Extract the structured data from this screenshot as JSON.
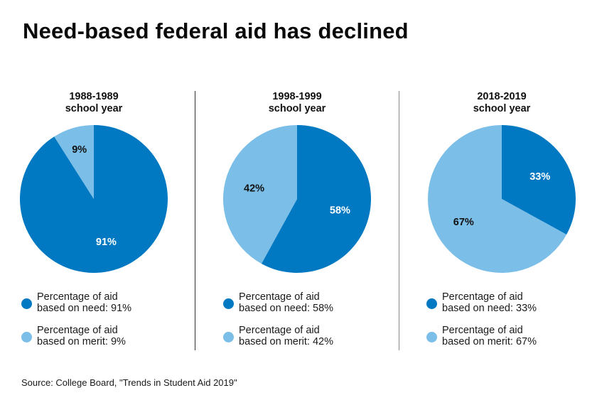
{
  "title": "Need-based federal aid has declined",
  "source": "Source: College Board, \"Trends in Student Aid 2019\"",
  "colors": {
    "need": "#0079C2",
    "merit": "#7BBEE8",
    "divider_dark": "#333333",
    "divider_light": "#8a8a8a",
    "label_on_dark": "#ffffff",
    "label_on_light": "#111111"
  },
  "chart_data": [
    {
      "type": "pie",
      "title_line1": "1988-1989",
      "title_line2": "school year",
      "slices": [
        {
          "name": "Percentage of aid based on need",
          "value": 91,
          "label": "91%",
          "key": "need"
        },
        {
          "name": "Percentage of aid based on merit",
          "value": 9,
          "label": "9%",
          "key": "merit"
        }
      ],
      "legend": [
        {
          "line1": "Percentage of aid",
          "line2": "based on need: 91%",
          "key": "need"
        },
        {
          "line1": "Percentage of aid",
          "line2": "based on merit: 9%",
          "key": "merit"
        }
      ]
    },
    {
      "type": "pie",
      "title_line1": "1998-1999",
      "title_line2": "school year",
      "slices": [
        {
          "name": "Percentage of aid based on need",
          "value": 58,
          "label": "58%",
          "key": "need"
        },
        {
          "name": "Percentage of aid based on merit",
          "value": 42,
          "label": "42%",
          "key": "merit"
        }
      ],
      "legend": [
        {
          "line1": "Percentage of aid",
          "line2": "based on need: 58%",
          "key": "need"
        },
        {
          "line1": "Percentage of aid",
          "line2": "based on merit: 42%",
          "key": "merit"
        }
      ]
    },
    {
      "type": "pie",
      "title_line1": "2018-2019",
      "title_line2": "school year",
      "slices": [
        {
          "name": "Percentage of aid based on need",
          "value": 33,
          "label": "33%",
          "key": "need"
        },
        {
          "name": "Percentage of aid based on merit",
          "value": 67,
          "label": "67%",
          "key": "merit"
        }
      ],
      "legend": [
        {
          "line1": "Percentage of aid",
          "line2": "based on need: 33%",
          "key": "need"
        },
        {
          "line1": "Percentage of aid",
          "line2": "based on merit: 67%",
          "key": "merit"
        }
      ]
    }
  ]
}
